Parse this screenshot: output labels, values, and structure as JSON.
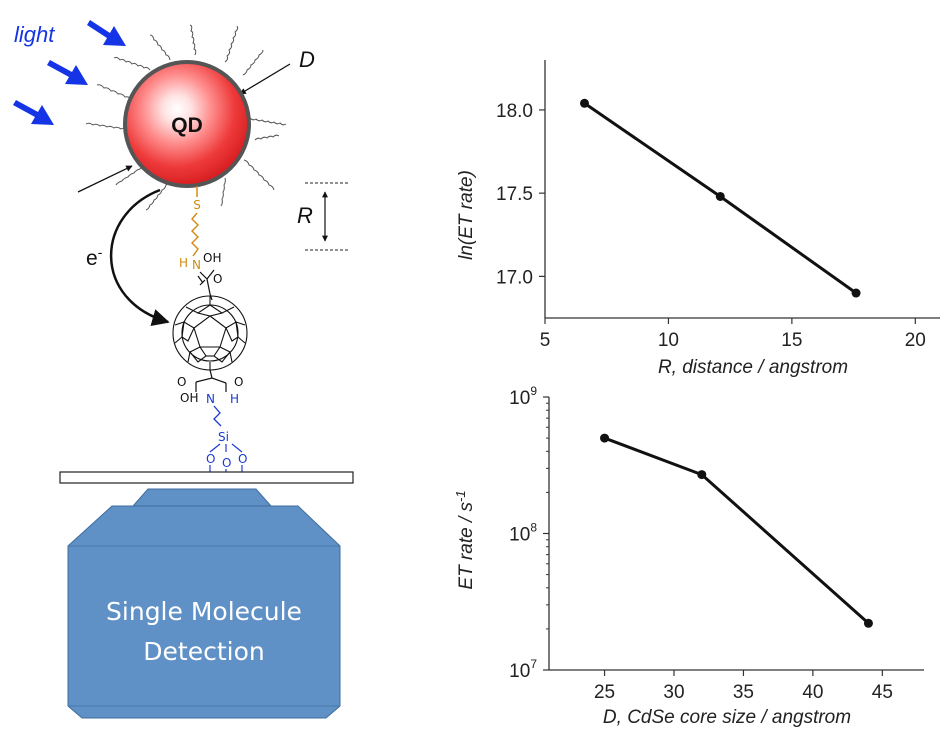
{
  "schematic": {
    "light_label": "light",
    "qd_label": "QD",
    "d_label": "D",
    "r_label": "R",
    "electron_label": "e",
    "electron_sup": "-",
    "sulfur_label": "S",
    "h_top": "H",
    "n_top": "N",
    "oh_top": "OH",
    "o_top": "O",
    "o_bottom": "O",
    "oh_bottom": "OH",
    "n_bottom": "N",
    "h_bottom": "H",
    "si_label": "Si",
    "oxygen_label": "O",
    "detector_line1": "Single Molecule",
    "detector_line2": "Detection",
    "colors": {
      "light_arrow": "#1434e6",
      "qd_red": "#e8262a",
      "linker_orange": "#d28a12",
      "silane_blue": "#1a3bd4",
      "detector_blue": "#5f90c6",
      "detector_edge": "#3f6d9f"
    }
  },
  "chart_data": [
    {
      "type": "line",
      "x": [
        6.6,
        12.1,
        17.6
      ],
      "y": [
        18.04,
        17.48,
        16.9
      ],
      "xlabel": "R, distance / angstrom",
      "ylabel": "ln(ET rate)",
      "xlim": [
        5,
        21
      ],
      "ylim": [
        16.75,
        18.3
      ],
      "xticks": [
        "5",
        "10",
        "15",
        "20"
      ],
      "yticks": [
        "17.0",
        "17.5",
        "18.0"
      ],
      "grid": false
    },
    {
      "type": "line",
      "y_scale": "log",
      "x": [
        25,
        32,
        44
      ],
      "y": [
        500000000,
        270000000,
        22000000
      ],
      "xlabel": "D, CdSe core size / angstrom",
      "ylabel": "ET rate / s",
      "ylabel_sup": "-1",
      "xlim": [
        21,
        48
      ],
      "ylim": [
        10000000,
        1000000000
      ],
      "xticks": [
        "25",
        "30",
        "35",
        "40",
        "45"
      ],
      "yticks": [
        {
          "base": "10",
          "exp": "7"
        },
        {
          "base": "10",
          "exp": "8"
        },
        {
          "base": "10",
          "exp": "9"
        }
      ],
      "grid": false
    }
  ]
}
